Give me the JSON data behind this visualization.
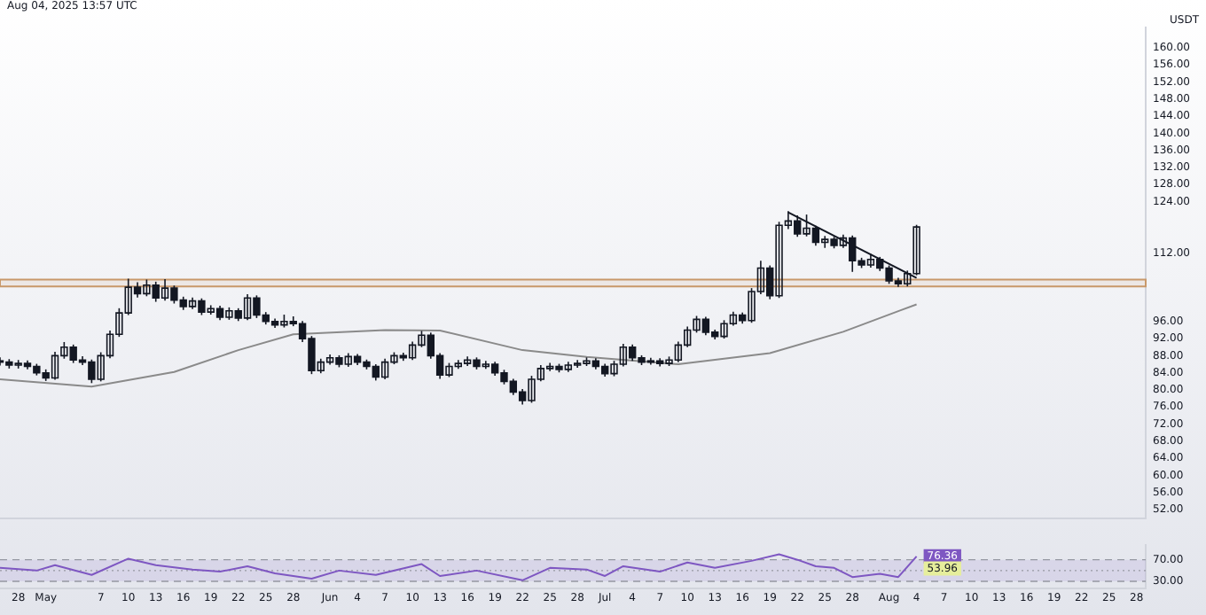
{
  "chart_data": [
    {
      "type": "candlestick",
      "title": "Aug 04, 2025 13:57 UTC",
      "ylabel": "USDT",
      "color": "#131722",
      "x": [
        "2025-04-26",
        "2025-04-27",
        "2025-04-28",
        "2025-04-29",
        "2025-04-30",
        "2025-05-01",
        "2025-05-02",
        "2025-05-03",
        "2025-05-04",
        "2025-05-05",
        "2025-05-06",
        "2025-05-07",
        "2025-05-08",
        "2025-05-09",
        "2025-05-10",
        "2025-05-11",
        "2025-05-12",
        "2025-05-13",
        "2025-05-14",
        "2025-05-15",
        "2025-05-16",
        "2025-05-17",
        "2025-05-18",
        "2025-05-19",
        "2025-05-20",
        "2025-05-21",
        "2025-05-22",
        "2025-05-23",
        "2025-05-24",
        "2025-05-25",
        "2025-05-26",
        "2025-05-27",
        "2025-05-28",
        "2025-05-29",
        "2025-05-30",
        "2025-05-31",
        "2025-06-01",
        "2025-06-02",
        "2025-06-03",
        "2025-06-04",
        "2025-06-05",
        "2025-06-06",
        "2025-06-07",
        "2025-06-08",
        "2025-06-09",
        "2025-06-10",
        "2025-06-11",
        "2025-06-12",
        "2025-06-13",
        "2025-06-14",
        "2025-06-15",
        "2025-06-16",
        "2025-06-17",
        "2025-06-18",
        "2025-06-19",
        "2025-06-20",
        "2025-06-21",
        "2025-06-22",
        "2025-06-23",
        "2025-06-24",
        "2025-06-25",
        "2025-06-26",
        "2025-06-27",
        "2025-06-28",
        "2025-06-29",
        "2025-06-30",
        "2025-07-01",
        "2025-07-02",
        "2025-07-03",
        "2025-07-04",
        "2025-07-05",
        "2025-07-06",
        "2025-07-07",
        "2025-07-08",
        "2025-07-09",
        "2025-07-10",
        "2025-07-11",
        "2025-07-12",
        "2025-07-13",
        "2025-07-14",
        "2025-07-15",
        "2025-07-16",
        "2025-07-17",
        "2025-07-18",
        "2025-07-19",
        "2025-07-20",
        "2025-07-21",
        "2025-07-22",
        "2025-07-23",
        "2025-07-24",
        "2025-07-25",
        "2025-07-26",
        "2025-07-27",
        "2025-07-28",
        "2025-07-29",
        "2025-07-30",
        "2025-07-31",
        "2025-08-01",
        "2025-08-02",
        "2025-08-03",
        "2025-08-04"
      ],
      "ohlc": [
        [
          86.8,
          87.6,
          85.7,
          86.5
        ],
        [
          86.5,
          87.2,
          85.0,
          85.8
        ],
        [
          85.8,
          87.0,
          85.0,
          86.2
        ],
        [
          86.2,
          86.9,
          84.8,
          85.5
        ],
        [
          85.5,
          86.1,
          83.4,
          84.0
        ],
        [
          84.0,
          84.8,
          82.1,
          82.8
        ],
        [
          82.8,
          88.9,
          82.4,
          88.0
        ],
        [
          88.0,
          91.2,
          87.3,
          90.0
        ],
        [
          90.0,
          90.6,
          86.3,
          87.0
        ],
        [
          87.0,
          87.9,
          85.8,
          86.5
        ],
        [
          86.5,
          87.1,
          81.6,
          82.5
        ],
        [
          82.5,
          88.8,
          82.0,
          88.0
        ],
        [
          88.0,
          93.9,
          87.4,
          93.0
        ],
        [
          93.0,
          99.1,
          92.4,
          98.0
        ],
        [
          98.0,
          106.0,
          97.5,
          104.0
        ],
        [
          104.0,
          105.2,
          101.6,
          102.5
        ],
        [
          102.5,
          105.8,
          101.9,
          104.5
        ],
        [
          104.5,
          105.3,
          100.6,
          101.5
        ],
        [
          101.5,
          105.9,
          100.9,
          103.8
        ],
        [
          103.8,
          104.4,
          100.2,
          101.0
        ],
        [
          101.0,
          101.8,
          98.7,
          99.5
        ],
        [
          99.5,
          101.6,
          98.9,
          100.8
        ],
        [
          100.8,
          101.4,
          97.5,
          98.2
        ],
        [
          98.2,
          99.8,
          97.6,
          99.0
        ],
        [
          99.0,
          99.7,
          96.3,
          97.0
        ],
        [
          97.0,
          99.3,
          96.4,
          98.5
        ],
        [
          98.5,
          99.1,
          96.1,
          96.8
        ],
        [
          96.8,
          102.4,
          96.3,
          101.5
        ],
        [
          101.5,
          102.1,
          96.8,
          97.5
        ],
        [
          97.5,
          98.2,
          95.3,
          96.0
        ],
        [
          96.0,
          96.7,
          94.5,
          95.2
        ],
        [
          95.2,
          97.6,
          94.6,
          96.0
        ],
        [
          96.0,
          97.2,
          94.9,
          95.5
        ],
        [
          95.5,
          96.1,
          91.2,
          92.0
        ],
        [
          92.0,
          92.6,
          83.7,
          84.5
        ],
        [
          84.5,
          87.3,
          83.9,
          86.5
        ],
        [
          86.5,
          88.3,
          85.9,
          87.5
        ],
        [
          87.5,
          88.1,
          85.3,
          86.0
        ],
        [
          86.0,
          88.6,
          85.4,
          87.8
        ],
        [
          87.8,
          88.4,
          85.8,
          86.5
        ],
        [
          86.5,
          87.1,
          84.8,
          85.5
        ],
        [
          85.5,
          86.0,
          82.2,
          83.0
        ],
        [
          83.0,
          87.3,
          82.5,
          86.5
        ],
        [
          86.5,
          88.8,
          86.0,
          88.0
        ],
        [
          88.0,
          88.7,
          86.8,
          87.5
        ],
        [
          87.5,
          91.3,
          87.0,
          90.5
        ],
        [
          90.5,
          93.8,
          90.0,
          92.8
        ],
        [
          92.8,
          93.4,
          87.3,
          88.0
        ],
        [
          88.0,
          88.6,
          82.6,
          83.5
        ],
        [
          83.5,
          86.3,
          83.0,
          85.5
        ],
        [
          85.5,
          87.0,
          84.9,
          86.2
        ],
        [
          86.2,
          87.8,
          85.6,
          87.0
        ],
        [
          87.0,
          87.6,
          84.8,
          85.5
        ],
        [
          85.5,
          86.8,
          84.9,
          86.0
        ],
        [
          86.0,
          86.6,
          83.3,
          84.0
        ],
        [
          84.0,
          84.7,
          81.3,
          82.0
        ],
        [
          82.0,
          82.6,
          78.8,
          79.5
        ],
        [
          79.5,
          80.2,
          76.6,
          77.5
        ],
        [
          77.5,
          83.3,
          77.0,
          82.5
        ],
        [
          82.5,
          85.8,
          82.0,
          85.0
        ],
        [
          85.0,
          86.3,
          84.4,
          85.5
        ],
        [
          85.5,
          86.1,
          84.1,
          84.8
        ],
        [
          84.8,
          86.6,
          84.2,
          85.8
        ],
        [
          85.8,
          87.0,
          85.2,
          86.2
        ],
        [
          86.2,
          87.6,
          85.6,
          86.8
        ],
        [
          86.8,
          87.4,
          84.8,
          85.5
        ],
        [
          85.5,
          86.1,
          83.1,
          83.8
        ],
        [
          83.8,
          86.8,
          83.2,
          86.0
        ],
        [
          86.0,
          90.8,
          85.5,
          90.0
        ],
        [
          90.0,
          90.6,
          86.8,
          87.5
        ],
        [
          87.5,
          88.1,
          85.8,
          86.5
        ],
        [
          86.5,
          87.5,
          85.9,
          86.8
        ],
        [
          86.8,
          87.4,
          85.5,
          86.2
        ],
        [
          86.2,
          87.8,
          85.6,
          87.0
        ],
        [
          87.0,
          91.3,
          86.5,
          90.5
        ],
        [
          90.5,
          94.8,
          90.0,
          94.0
        ],
        [
          94.0,
          97.3,
          93.4,
          96.5
        ],
        [
          96.5,
          97.1,
          92.8,
          93.5
        ],
        [
          93.5,
          94.1,
          91.8,
          92.5
        ],
        [
          92.5,
          96.3,
          92.0,
          95.5
        ],
        [
          95.5,
          98.3,
          95.0,
          97.5
        ],
        [
          97.5,
          98.1,
          95.5,
          96.2
        ],
        [
          96.2,
          103.8,
          95.7,
          103.0
        ],
        [
          103.0,
          110.2,
          102.4,
          108.5
        ],
        [
          108.5,
          109.1,
          101.2,
          102.0
        ],
        [
          102.0,
          119.3,
          101.5,
          118.5
        ],
        [
          118.5,
          121.8,
          117.6,
          119.5
        ],
        [
          119.5,
          120.8,
          115.8,
          116.5
        ],
        [
          116.5,
          121.0,
          115.9,
          117.8
        ],
        [
          117.8,
          118.4,
          113.7,
          114.5
        ],
        [
          114.5,
          116.0,
          113.2,
          115.2
        ],
        [
          115.2,
          115.8,
          113.1,
          113.8
        ],
        [
          113.8,
          116.3,
          113.2,
          115.5
        ],
        [
          115.5,
          116.1,
          107.6,
          110.2
        ],
        [
          110.2,
          110.9,
          108.5,
          109.2
        ],
        [
          109.2,
          111.8,
          108.6,
          110.5
        ],
        [
          110.5,
          111.1,
          107.8,
          108.5
        ],
        [
          108.5,
          109.1,
          104.8,
          105.5
        ],
        [
          105.5,
          106.2,
          104.1,
          104.8
        ],
        [
          104.8,
          107.9,
          104.2,
          107.2
        ],
        [
          107.2,
          118.6,
          106.8,
          118.1
        ]
      ],
      "series": [
        {
          "type": "line",
          "color": "#8a8a8a",
          "x": [
            "2025-04-26",
            "2025-05-06",
            "2025-05-15",
            "2025-05-22",
            "2025-05-28",
            "2025-06-07",
            "2025-06-13",
            "2025-06-22",
            "2025-06-29",
            "2025-07-09",
            "2025-07-19",
            "2025-07-27",
            "2025-08-04"
          ],
          "values": [
            82.5,
            80.8,
            84.2,
            89.3,
            93,
            94,
            93.9,
            89.3,
            87.7,
            86,
            88.6,
            93.6,
            100
          ]
        },
        {
          "type": "line",
          "color": "#131722",
          "x": [
            "2025-07-21",
            "2025-08-04"
          ],
          "values": [
            121.5,
            106.2
          ]
        }
      ],
      "bands": [
        {
          "axis": "y",
          "from": 104.2,
          "to": 105.8,
          "color": "#c8986a"
        }
      ],
      "xlim": [
        "2025-04-26",
        "2025-08-29"
      ],
      "ylim": [
        50,
        164.7
      ],
      "yticks": [
        {
          "value": 52,
          "label": "52.00"
        },
        {
          "value": 56,
          "label": "56.00"
        },
        {
          "value": 60,
          "label": "60.00"
        },
        {
          "value": 64,
          "label": "64.00"
        },
        {
          "value": 68,
          "label": "68.00"
        },
        {
          "value": 72,
          "label": "72.00"
        },
        {
          "value": 76,
          "label": "76.00"
        },
        {
          "value": 80,
          "label": "80.00"
        },
        {
          "value": 84,
          "label": "84.00"
        },
        {
          "value": 88,
          "label": "88.00"
        },
        {
          "value": 92,
          "label": "92.00"
        },
        {
          "value": 96,
          "label": "96.00"
        },
        {
          "value": 112,
          "label": "112.00"
        },
        {
          "value": 124,
          "label": "124.00"
        },
        {
          "value": 128,
          "label": "128.00"
        },
        {
          "value": 132,
          "label": "132.00"
        },
        {
          "value": 136,
          "label": "136.00"
        },
        {
          "value": 140,
          "label": "140.00"
        },
        {
          "value": 144,
          "label": "144.00"
        },
        {
          "value": 148,
          "label": "148.00"
        },
        {
          "value": 152,
          "label": "152.00"
        },
        {
          "value": 156,
          "label": "156.00"
        },
        {
          "value": 160,
          "label": "160.00"
        }
      ],
      "tick_labels": "y"
    },
    {
      "type": "line",
      "series": [
        {
          "color": "#7e57c2",
          "x": [
            "2025-04-26",
            "2025-04-30",
            "2025-05-02",
            "2025-05-06",
            "2025-05-10",
            "2025-05-13",
            "2025-05-17",
            "2025-05-20",
            "2025-05-23",
            "2025-05-26",
            "2025-05-30",
            "2025-06-02",
            "2025-06-06",
            "2025-06-11",
            "2025-06-13",
            "2025-06-17",
            "2025-06-22",
            "2025-06-25",
            "2025-06-29",
            "2025-07-01",
            "2025-07-03",
            "2025-07-07",
            "2025-07-10",
            "2025-07-13",
            "2025-07-17",
            "2025-07-20",
            "2025-07-22",
            "2025-07-24",
            "2025-07-26",
            "2025-07-28",
            "2025-07-31",
            "2025-08-02",
            "2025-08-04"
          ],
          "values": [
            55,
            50,
            60,
            42,
            72,
            60,
            52,
            48,
            58,
            45,
            35,
            50,
            42,
            62,
            40,
            50,
            32,
            55,
            52,
            40,
            58,
            48,
            65,
            55,
            68,
            80,
            70,
            58,
            55,
            38,
            44,
            38,
            76.36
          ],
          "value_labels": [
            null,
            null,
            null,
            null,
            null,
            null,
            null,
            null,
            null,
            null,
            null,
            null,
            null,
            null,
            null,
            null,
            null,
            null,
            null,
            null,
            null,
            null,
            null,
            null,
            null,
            null,
            null,
            null,
            null,
            null,
            null,
            null,
            "76.36"
          ]
        }
      ],
      "annotations": [
        {
          "text": "53.96",
          "x": "2025-08-04",
          "y": 53.96
        }
      ],
      "ref_lines": [
        {
          "axis": "y",
          "value": 70,
          "line_style": "dashed",
          "color": "#9598a1"
        },
        {
          "axis": "y",
          "value": 50,
          "line_style": "dotted",
          "color": "#9598a1"
        },
        {
          "axis": "y",
          "value": 30,
          "line_style": "dashed",
          "color": "#9598a1"
        }
      ],
      "bands": [
        {
          "axis": "y",
          "from": 30,
          "to": 70,
          "color": "#7e57c2"
        }
      ],
      "xlim": [
        "2025-04-26",
        "2025-08-29"
      ],
      "ylim": [
        17,
        97
      ],
      "yticks": [
        {
          "value": 30,
          "label": "30.00"
        },
        {
          "value": 70,
          "label": "70.00"
        }
      ],
      "xticks": [
        {
          "value": "2025-04-28",
          "label": "28"
        },
        {
          "value": "2025-05-01",
          "label": "May"
        },
        {
          "value": "2025-05-07",
          "label": "7"
        },
        {
          "value": "2025-05-10",
          "label": "10"
        },
        {
          "value": "2025-05-13",
          "label": "13"
        },
        {
          "value": "2025-05-16",
          "label": "16"
        },
        {
          "value": "2025-05-19",
          "label": "19"
        },
        {
          "value": "2025-05-22",
          "label": "22"
        },
        {
          "value": "2025-05-25",
          "label": "25"
        },
        {
          "value": "2025-05-28",
          "label": "28"
        },
        {
          "value": "2025-06-01",
          "label": "Jun"
        },
        {
          "value": "2025-06-04",
          "label": "4"
        },
        {
          "value": "2025-06-07",
          "label": "7"
        },
        {
          "value": "2025-06-10",
          "label": "10"
        },
        {
          "value": "2025-06-13",
          "label": "13"
        },
        {
          "value": "2025-06-16",
          "label": "16"
        },
        {
          "value": "2025-06-19",
          "label": "19"
        },
        {
          "value": "2025-06-22",
          "label": "22"
        },
        {
          "value": "2025-06-25",
          "label": "25"
        },
        {
          "value": "2025-06-28",
          "label": "28"
        },
        {
          "value": "2025-07-01",
          "label": "Jul"
        },
        {
          "value": "2025-07-04",
          "label": "4"
        },
        {
          "value": "2025-07-07",
          "label": "7"
        },
        {
          "value": "2025-07-10",
          "label": "10"
        },
        {
          "value": "2025-07-13",
          "label": "13"
        },
        {
          "value": "2025-07-16",
          "label": "16"
        },
        {
          "value": "2025-07-19",
          "label": "19"
        },
        {
          "value": "2025-07-22",
          "label": "22"
        },
        {
          "value": "2025-07-25",
          "label": "25"
        },
        {
          "value": "2025-07-28",
          "label": "28"
        },
        {
          "value": "2025-08-01",
          "label": "Aug"
        },
        {
          "value": "2025-08-04",
          "label": "4"
        },
        {
          "value": "2025-08-07",
          "label": "7"
        },
        {
          "value": "2025-08-10",
          "label": "10"
        },
        {
          "value": "2025-08-13",
          "label": "13"
        },
        {
          "value": "2025-08-16",
          "label": "16"
        },
        {
          "value": "2025-08-19",
          "label": "19"
        },
        {
          "value": "2025-08-22",
          "label": "22"
        },
        {
          "value": "2025-08-25",
          "label": "25"
        },
        {
          "value": "2025-08-28",
          "label": "28"
        }
      ]
    }
  ]
}
